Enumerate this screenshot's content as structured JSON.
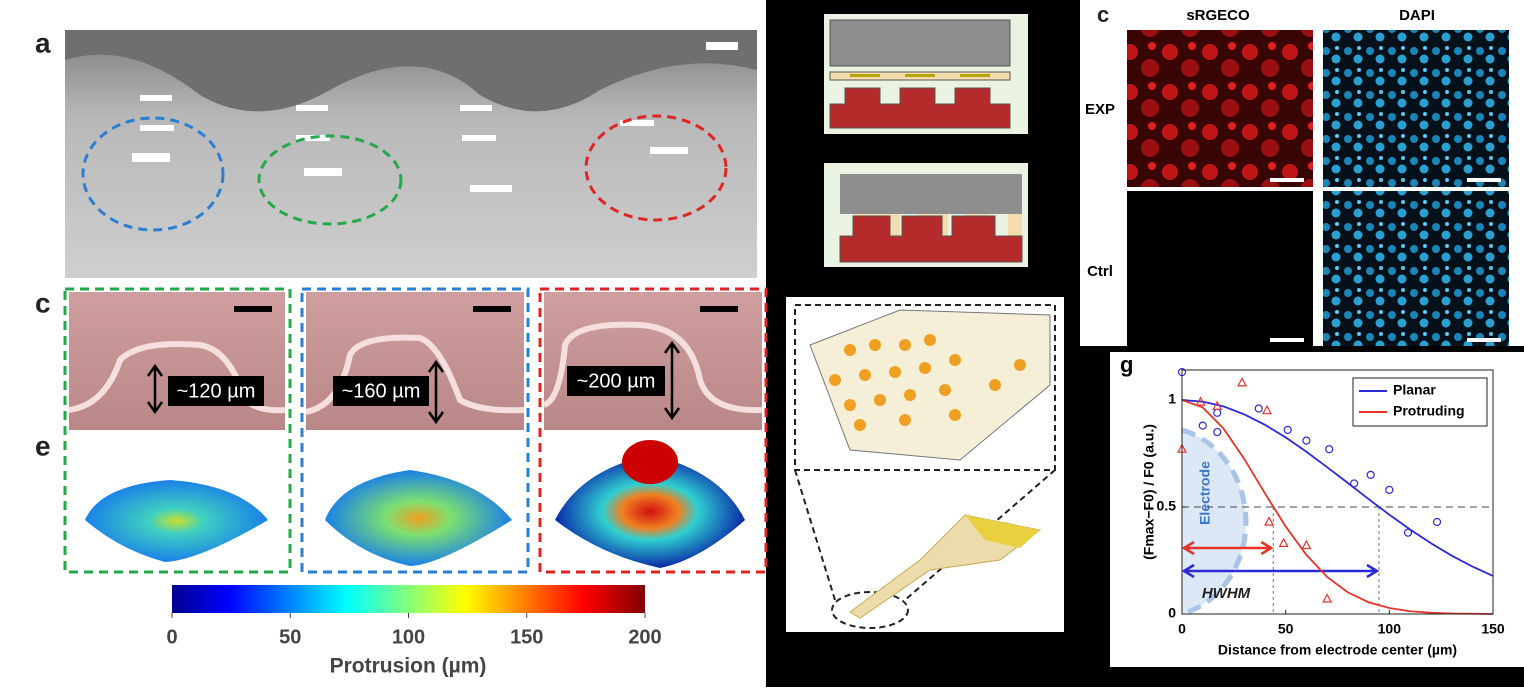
{
  "panel_a": {
    "label": "a"
  },
  "panel_c": {
    "label": "c",
    "heights": [
      "~120 µm",
      "~160 µm",
      "~200 µm"
    ]
  },
  "panel_e": {
    "label": "e",
    "colorbar": {
      "lim": [
        0,
        200
      ],
      "ticks": [
        0,
        50,
        100,
        150,
        200
      ],
      "title": "Protrusion (µm)"
    }
  },
  "panel_c_imaging": {
    "label": "c",
    "columns": [
      "sRGECO",
      "DAPI"
    ],
    "rows": [
      "EXP",
      "Ctrl"
    ]
  },
  "chart_data": {
    "type": "line",
    "label": "g",
    "xlabel": "Distance from electrode center (µm)",
    "ylabel": "(Fmax−F0) / F0 (a.u.)",
    "xlim": [
      0,
      150
    ],
    "ylim": [
      0,
      1.14
    ],
    "xticks": [
      0,
      50,
      100,
      150
    ],
    "yticks": [
      0,
      0.5,
      1
    ],
    "legend": "upper right",
    "annotations": [
      "Electrode",
      "HWHM"
    ],
    "guides": {
      "y": 0.5,
      "x": [
        44,
        95
      ]
    },
    "x": [
      0,
      10,
      20,
      30,
      40,
      50,
      60,
      70,
      80,
      90,
      100,
      110,
      120,
      130,
      140,
      150
    ],
    "series": [
      {
        "name": "Planar",
        "color": "#2a2ad8",
        "values": [
          1,
          0.992,
          0.97,
          0.933,
          0.884,
          0.825,
          0.758,
          0.686,
          0.612,
          0.537,
          0.464,
          0.395,
          0.331,
          0.273,
          0.222,
          0.178
        ],
        "points": {
          "x": [
            0,
            10,
            17,
            17,
            37,
            51,
            60,
            71,
            83,
            91,
            100,
            109,
            123
          ],
          "values": [
            1.13,
            0.88,
            0.94,
            0.85,
            0.96,
            0.86,
            0.81,
            0.77,
            0.61,
            0.65,
            0.58,
            0.38,
            0.43
          ]
        }
      },
      {
        "name": "Protruding",
        "color": "#e8332a",
        "values": [
          1,
          0.965,
          0.867,
          0.725,
          0.564,
          0.409,
          0.276,
          0.173,
          0.101,
          0.055,
          0.028,
          0.013,
          0.006,
          0.002,
          0.001,
          0
        ],
        "points": {
          "x": [
            0,
            9,
            17,
            29,
            41,
            42,
            49,
            60,
            70
          ],
          "values": [
            0.77,
            0.99,
            0.97,
            1.08,
            0.95,
            0.43,
            0.33,
            0.32,
            0.07
          ]
        }
      }
    ]
  }
}
